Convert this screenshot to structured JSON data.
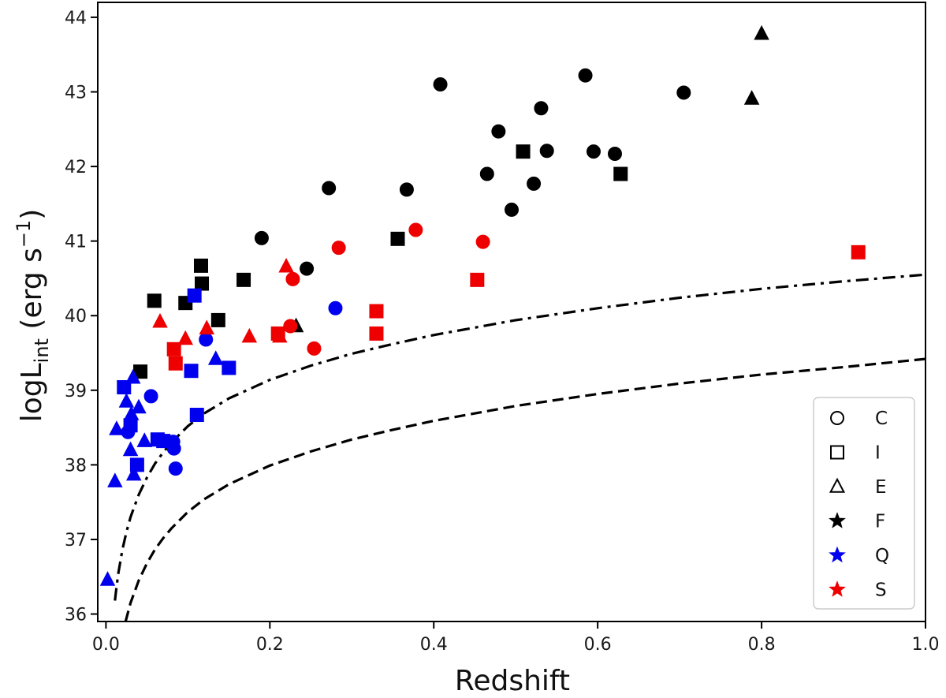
{
  "chart_data": {
    "type": "scatter",
    "xlabel": "Redshift",
    "ylabel": {
      "base": "logL",
      "subscript": "int",
      "unit_prefix": " (erg s",
      "unit_sup": "−1",
      "unit_suffix": ")"
    },
    "xlim": [
      -0.01,
      1.0
    ],
    "ylim": [
      35.9,
      44.2
    ],
    "xticks": [
      0.0,
      0.2,
      0.4,
      0.6,
      0.8,
      1.0
    ],
    "xtick_labels": [
      "0.0",
      "0.2",
      "0.4",
      "0.6",
      "0.8",
      "1.0"
    ],
    "yticks": [
      36,
      37,
      38,
      39,
      40,
      41,
      42,
      43,
      44
    ],
    "ytick_labels": [
      "36",
      "37",
      "38",
      "39",
      "40",
      "41",
      "42",
      "43",
      "44"
    ],
    "colors": {
      "F": "#000000",
      "Q": "#0000ee",
      "S": "#ee0000"
    },
    "legend": {
      "position": "lower right",
      "entries": [
        {
          "label": "C",
          "marker": "circle-open"
        },
        {
          "label": "I",
          "marker": "square-open"
        },
        {
          "label": "E",
          "marker": "triangle-open"
        },
        {
          "label": "F",
          "marker": "star",
          "color": "#000000"
        },
        {
          "label": "Q",
          "marker": "star",
          "color": "#0000ee"
        },
        {
          "label": "S",
          "marker": "star",
          "color": "#ee0000"
        }
      ]
    },
    "series": [
      {
        "name": "C-F",
        "shape": "circle",
        "group": "F",
        "points": [
          [
            0.19,
            41.04
          ],
          [
            0.245,
            40.63
          ],
          [
            0.272,
            41.71
          ],
          [
            0.367,
            41.69
          ],
          [
            0.408,
            43.1
          ],
          [
            0.465,
            41.9
          ],
          [
            0.479,
            42.47
          ],
          [
            0.495,
            41.42
          ],
          [
            0.522,
            41.77
          ],
          [
            0.531,
            42.78
          ],
          [
            0.538,
            42.21
          ],
          [
            0.585,
            43.22
          ],
          [
            0.595,
            42.2
          ],
          [
            0.621,
            42.17
          ],
          [
            0.705,
            42.99
          ]
        ]
      },
      {
        "name": "I-F",
        "shape": "square",
        "group": "F",
        "points": [
          [
            0.042,
            39.25
          ],
          [
            0.059,
            40.2
          ],
          [
            0.097,
            40.17
          ],
          [
            0.116,
            40.67
          ],
          [
            0.117,
            40.43
          ],
          [
            0.137,
            39.94
          ],
          [
            0.168,
            40.48
          ],
          [
            0.356,
            41.03
          ],
          [
            0.509,
            42.2
          ],
          [
            0.628,
            41.9
          ]
        ]
      },
      {
        "name": "E-F",
        "shape": "triangle",
        "group": "F",
        "points": [
          [
            0.232,
            39.86
          ],
          [
            0.788,
            42.91
          ],
          [
            0.8,
            43.78
          ]
        ]
      },
      {
        "name": "C-Q",
        "shape": "circle",
        "group": "Q",
        "points": [
          [
            0.027,
            38.44
          ],
          [
            0.055,
            38.92
          ],
          [
            0.082,
            38.31
          ],
          [
            0.083,
            38.22
          ],
          [
            0.085,
            37.95
          ],
          [
            0.122,
            39.68
          ],
          [
            0.28,
            40.1
          ]
        ]
      },
      {
        "name": "I-Q",
        "shape": "square",
        "group": "Q",
        "points": [
          [
            0.022,
            39.04
          ],
          [
            0.03,
            38.53
          ],
          [
            0.038,
            38.0
          ],
          [
            0.063,
            38.34
          ],
          [
            0.07,
            38.32
          ],
          [
            0.104,
            39.26
          ],
          [
            0.108,
            40.27
          ],
          [
            0.111,
            38.67
          ],
          [
            0.15,
            39.3
          ]
        ]
      },
      {
        "name": "E-Q",
        "shape": "triangle",
        "group": "Q",
        "points": [
          [
            0.002,
            36.46
          ],
          [
            0.011,
            37.78
          ],
          [
            0.013,
            38.48
          ],
          [
            0.025,
            38.85
          ],
          [
            0.03,
            38.2
          ],
          [
            0.031,
            38.68
          ],
          [
            0.033,
            39.17
          ],
          [
            0.034,
            37.87
          ],
          [
            0.04,
            38.77
          ],
          [
            0.047,
            38.32
          ],
          [
            0.134,
            39.42
          ]
        ]
      },
      {
        "name": "C-S",
        "shape": "circle",
        "group": "S",
        "points": [
          [
            0.225,
            39.86
          ],
          [
            0.228,
            40.49
          ],
          [
            0.254,
            39.56
          ],
          [
            0.284,
            40.91
          ],
          [
            0.378,
            41.15
          ],
          [
            0.46,
            40.99
          ]
        ]
      },
      {
        "name": "I-S",
        "shape": "square",
        "group": "S",
        "points": [
          [
            0.083,
            39.55
          ],
          [
            0.085,
            39.36
          ],
          [
            0.21,
            39.76
          ],
          [
            0.33,
            40.06
          ],
          [
            0.33,
            39.76
          ],
          [
            0.453,
            40.48
          ],
          [
            0.918,
            40.85
          ]
        ]
      },
      {
        "name": "E-S",
        "shape": "triangle",
        "group": "S",
        "points": [
          [
            0.066,
            39.92
          ],
          [
            0.097,
            39.69
          ],
          [
            0.123,
            39.83
          ],
          [
            0.175,
            39.72
          ],
          [
            0.212,
            39.72
          ],
          [
            0.22,
            40.66
          ]
        ]
      }
    ],
    "curves": [
      {
        "name": "dash-dot limit",
        "style": "dashdot",
        "points": [
          [
            0.011,
            36.18
          ],
          [
            0.013,
            36.37
          ],
          [
            0.015,
            36.54
          ],
          [
            0.02,
            36.86
          ],
          [
            0.025,
            37.1
          ],
          [
            0.03,
            37.3
          ],
          [
            0.04,
            37.6
          ],
          [
            0.05,
            37.83
          ],
          [
            0.06,
            38.02
          ],
          [
            0.07,
            38.17
          ],
          [
            0.08,
            38.3
          ],
          [
            0.1,
            38.52
          ],
          [
            0.12,
            38.69
          ],
          [
            0.15,
            38.89
          ],
          [
            0.2,
            39.14
          ],
          [
            0.25,
            39.33
          ],
          [
            0.3,
            39.49
          ],
          [
            0.35,
            39.62
          ],
          [
            0.4,
            39.74
          ],
          [
            0.5,
            39.94
          ],
          [
            0.6,
            40.1
          ],
          [
            0.7,
            40.24
          ],
          [
            0.8,
            40.36
          ],
          [
            0.9,
            40.46
          ],
          [
            1.0,
            40.55
          ]
        ]
      },
      {
        "name": "dashed limit",
        "style": "dashed",
        "points": [
          [
            0.024,
            35.9
          ],
          [
            0.03,
            36.15
          ],
          [
            0.04,
            36.45
          ],
          [
            0.05,
            36.68
          ],
          [
            0.06,
            36.87
          ],
          [
            0.07,
            37.02
          ],
          [
            0.08,
            37.15
          ],
          [
            0.1,
            37.37
          ],
          [
            0.12,
            37.54
          ],
          [
            0.15,
            37.74
          ],
          [
            0.2,
            37.99
          ],
          [
            0.25,
            38.18
          ],
          [
            0.3,
            38.34
          ],
          [
            0.35,
            38.47
          ],
          [
            0.4,
            38.59
          ],
          [
            0.5,
            38.79
          ],
          [
            0.6,
            38.95
          ],
          [
            0.7,
            39.09
          ],
          [
            0.8,
            39.21
          ],
          [
            0.9,
            39.31
          ],
          [
            1.0,
            39.42
          ]
        ]
      }
    ]
  }
}
